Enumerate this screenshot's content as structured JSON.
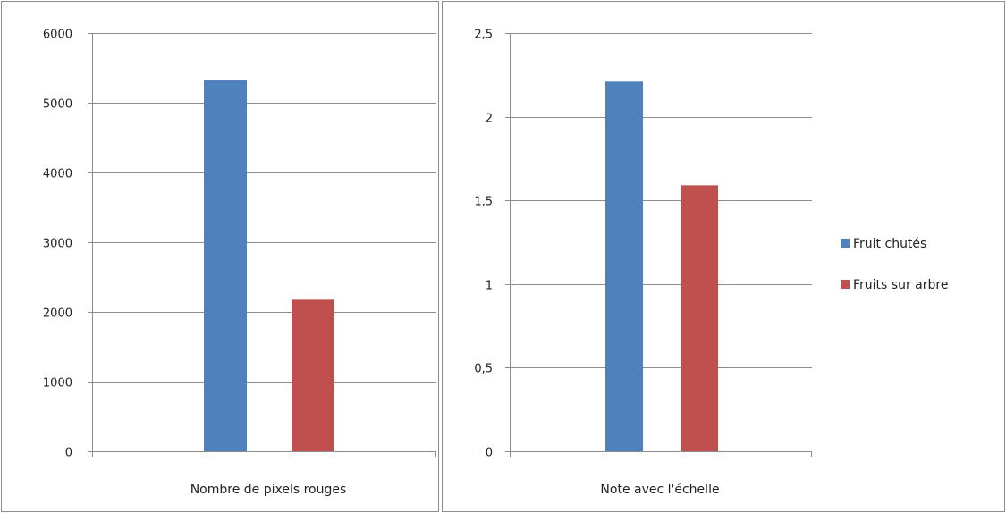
{
  "colors": {
    "blue": "#4F81BD",
    "red": "#C0504D",
    "grid": "#8C8C8C",
    "axis": "#8C8C8C",
    "frame": "#8C8C8C"
  },
  "chart_data": [
    {
      "type": "bar",
      "categories": [
        "Nombre de pixels rouges"
      ],
      "series": [
        {
          "name": "Fruit chutés",
          "values": [
            5320
          ]
        },
        {
          "name": "Fruits sur arbre",
          "values": [
            2175
          ]
        }
      ],
      "ylim": [
        0,
        6000
      ],
      "yticks": [
        0,
        1000,
        2000,
        3000,
        4000,
        5000,
        6000
      ],
      "ytick_labels": [
        "0",
        "1000",
        "2000",
        "3000",
        "4000",
        "5000",
        "6000"
      ],
      "grid": true
    },
    {
      "type": "bar",
      "categories": [
        "Note avec l'échelle"
      ],
      "series": [
        {
          "name": "Fruit chutés",
          "values": [
            2.21
          ]
        },
        {
          "name": "Fruits sur arbre",
          "values": [
            1.59
          ]
        }
      ],
      "ylim": [
        0,
        2.5
      ],
      "yticks": [
        0,
        0.5,
        1,
        1.5,
        2,
        2.5
      ],
      "ytick_labels": [
        "0",
        "0,5",
        "1",
        "1,5",
        "2",
        "2,5"
      ],
      "grid": true,
      "legend": "right"
    }
  ]
}
